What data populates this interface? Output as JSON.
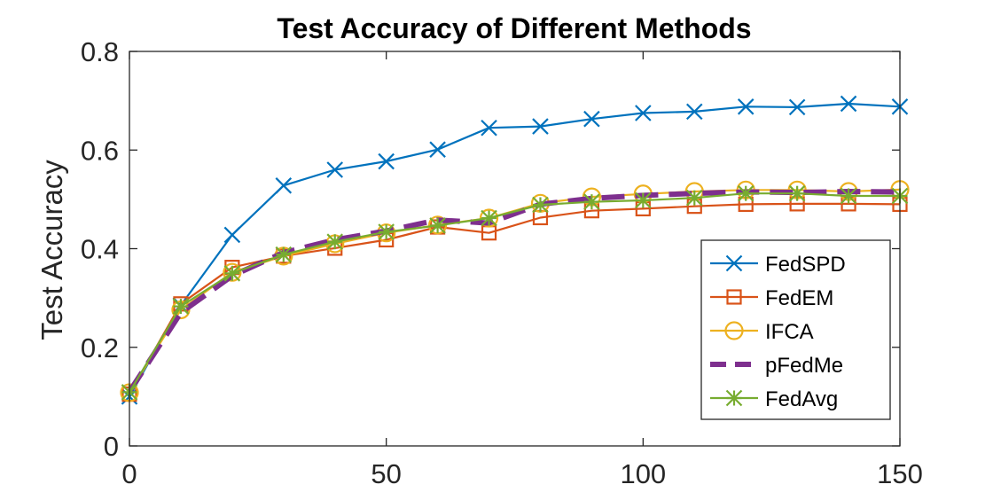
{
  "chart_data": {
    "type": "line",
    "title": "Test Accuracy of Different Methods",
    "xlabel": "",
    "ylabel": "Test Accuracy",
    "xlim": [
      0,
      150
    ],
    "ylim": [
      0,
      0.8
    ],
    "xticks": [
      0,
      50,
      100,
      150
    ],
    "yticks": [
      0,
      0.2,
      0.4,
      0.6,
      0.8
    ],
    "xtick_labels": [
      "0",
      "50",
      "100",
      "150"
    ],
    "ytick_labels": [
      "0",
      "0.2",
      "0.4",
      "0.6",
      "0.8"
    ],
    "grid": false,
    "legend_position": "right",
    "x": [
      0,
      10,
      20,
      30,
      40,
      50,
      60,
      70,
      80,
      90,
      100,
      110,
      120,
      130,
      140,
      150
    ],
    "series": [
      {
        "name": "FedSPD",
        "color": "#0072BD",
        "marker": "x-mark",
        "line": "solid",
        "values": [
          0.1,
          0.285,
          0.428,
          0.528,
          0.56,
          0.577,
          0.601,
          0.645,
          0.648,
          0.663,
          0.675,
          0.678,
          0.688,
          0.687,
          0.694,
          0.688
        ]
      },
      {
        "name": "FedEM",
        "color": "#D95319",
        "marker": "square",
        "line": "solid",
        "values": [
          0.105,
          0.288,
          0.362,
          0.385,
          0.401,
          0.418,
          0.444,
          0.432,
          0.463,
          0.477,
          0.481,
          0.486,
          0.49,
          0.491,
          0.491,
          0.49
        ]
      },
      {
        "name": "IFCA",
        "color": "#EDB120",
        "marker": "circle",
        "line": "solid",
        "values": [
          0.108,
          0.276,
          0.352,
          0.385,
          0.41,
          0.432,
          0.448,
          0.462,
          0.492,
          0.505,
          0.511,
          0.516,
          0.519,
          0.519,
          0.516,
          0.52
        ]
      },
      {
        "name": "pFedMe",
        "color": "#7E2F8E",
        "marker": "none",
        "line": "dashed",
        "values": [
          0.11,
          0.27,
          0.345,
          0.392,
          0.418,
          0.436,
          0.458,
          0.452,
          0.49,
          0.502,
          0.508,
          0.512,
          0.515,
          0.514,
          0.516,
          0.515
        ]
      },
      {
        "name": "FedAvg",
        "color": "#77AC30",
        "marker": "asterisk",
        "line": "solid",
        "values": [
          0.109,
          0.283,
          0.35,
          0.388,
          0.414,
          0.434,
          0.447,
          0.462,
          0.489,
          0.495,
          0.498,
          0.503,
          0.512,
          0.512,
          0.507,
          0.507
        ]
      }
    ]
  }
}
